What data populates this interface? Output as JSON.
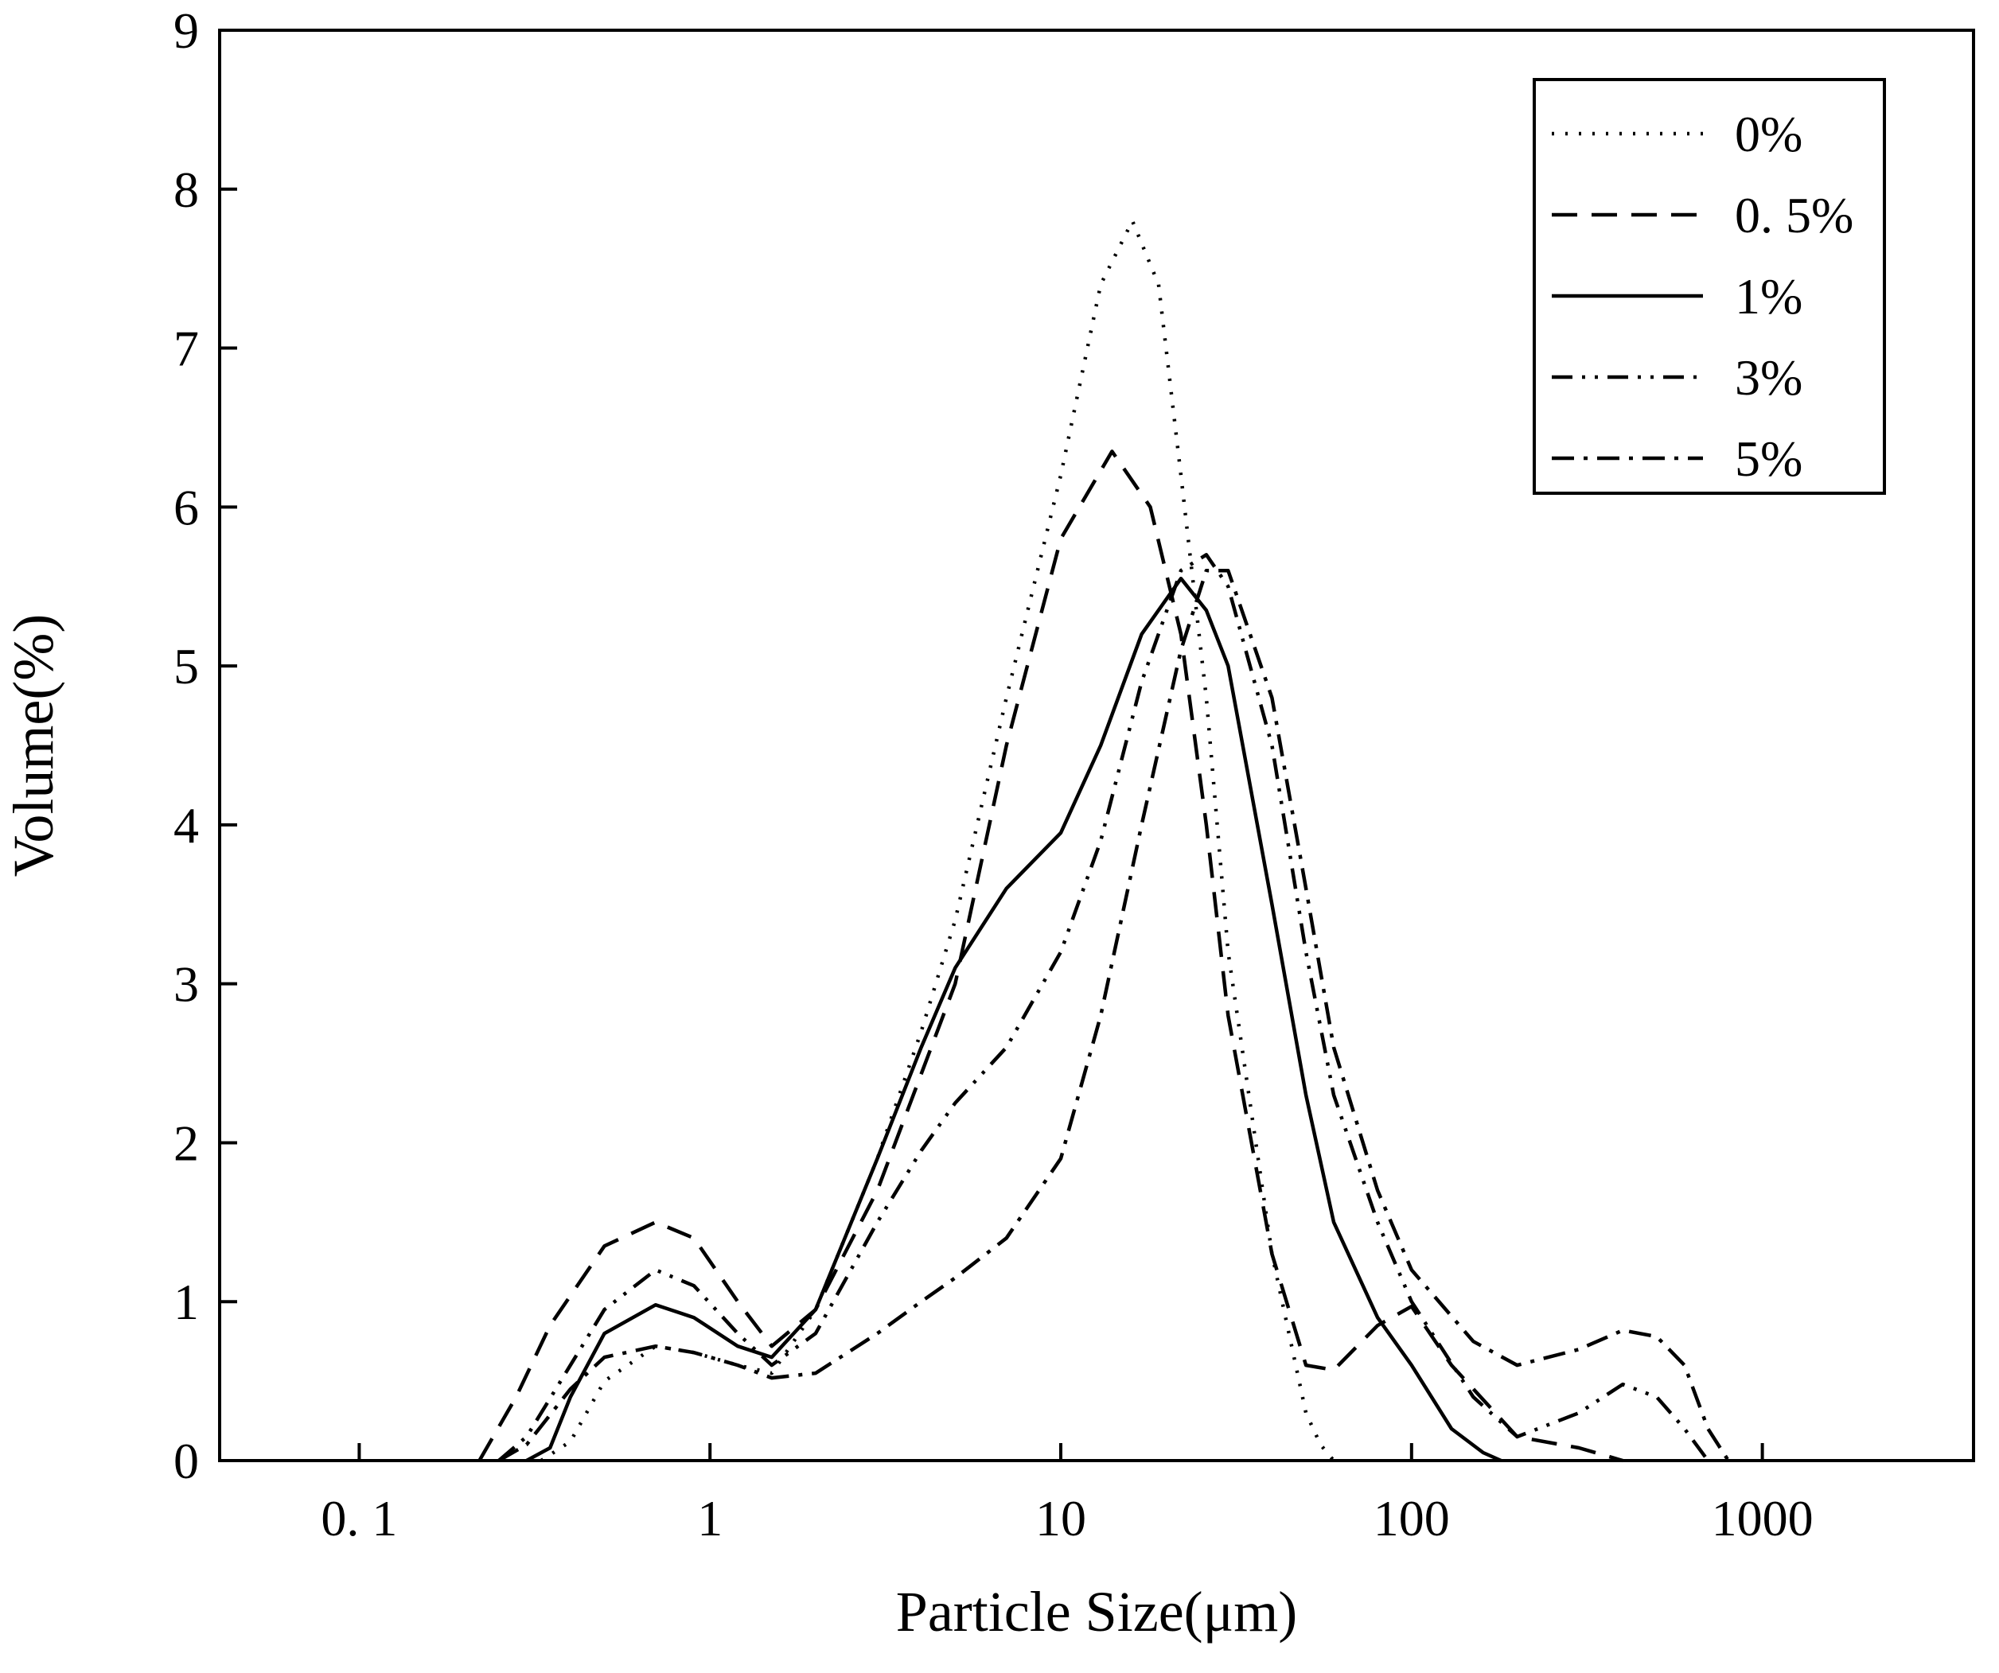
{
  "chart_data": {
    "type": "line",
    "title": "",
    "xlabel": "Particle Size(μm)",
    "ylabel": "Volume(%)",
    "xscale": "log",
    "xlim": [
      0.04,
      4000
    ],
    "ylim": [
      0,
      9
    ],
    "grid": false,
    "legend_position": "top-right",
    "x_ticks": [
      {
        "value": 0.1,
        "label": "0. 1"
      },
      {
        "value": 1,
        "label": "1"
      },
      {
        "value": 10,
        "label": "10"
      },
      {
        "value": 100,
        "label": "100"
      },
      {
        "value": 1000,
        "label": "1000"
      }
    ],
    "y_ticks": [
      {
        "value": 0,
        "label": "0"
      },
      {
        "value": 1,
        "label": "1"
      },
      {
        "value": 2,
        "label": "2"
      },
      {
        "value": 3,
        "label": "3"
      },
      {
        "value": 4,
        "label": "4"
      },
      {
        "value": 5,
        "label": "5"
      },
      {
        "value": 6,
        "label": "6"
      },
      {
        "value": 7,
        "label": "7"
      },
      {
        "value": 8,
        "label": "8"
      },
      {
        "value": 9,
        "label": "9"
      }
    ],
    "series": [
      {
        "name": "0%",
        "line_style": "dotted",
        "x": [
          0.33,
          0.4,
          0.5,
          0.7,
          0.9,
          1.2,
          1.5,
          2,
          3,
          4,
          5,
          7,
          10,
          13,
          16,
          19,
          22,
          26,
          30,
          40,
          50,
          55,
          60
        ],
        "y": [
          0,
          0.12,
          0.5,
          0.72,
          0.68,
          0.6,
          0.55,
          0.95,
          1.9,
          2.7,
          3.4,
          4.8,
          6.2,
          7.4,
          7.8,
          7.4,
          6.2,
          4.8,
          3.2,
          1.3,
          0.3,
          0.1,
          0
        ]
      },
      {
        "name": "0. 5%",
        "line_style": "dashed",
        "x": [
          0.22,
          0.28,
          0.35,
          0.5,
          0.7,
          0.9,
          1.2,
          1.5,
          2,
          3,
          5,
          7,
          10,
          14,
          18,
          22,
          26,
          30,
          40,
          50,
          60,
          80,
          100,
          130,
          200,
          300,
          400
        ],
        "y": [
          0,
          0.4,
          0.85,
          1.35,
          1.5,
          1.4,
          1.0,
          0.72,
          0.95,
          1.7,
          3.0,
          4.5,
          5.8,
          6.35,
          6.0,
          5.2,
          4.0,
          2.8,
          1.3,
          0.6,
          0.57,
          0.85,
          0.97,
          0.6,
          0.15,
          0.08,
          0
        ]
      },
      {
        "name": "1%",
        "line_style": "solid",
        "x": [
          0.3,
          0.35,
          0.4,
          0.5,
          0.7,
          0.9,
          1.2,
          1.5,
          2,
          3,
          4,
          5,
          7,
          10,
          13,
          17,
          22,
          26,
          30,
          40,
          50,
          60,
          80,
          100,
          130,
          160,
          180
        ],
        "y": [
          0,
          0.08,
          0.4,
          0.8,
          0.98,
          0.9,
          0.72,
          0.65,
          0.95,
          1.9,
          2.6,
          3.1,
          3.6,
          3.95,
          4.5,
          5.2,
          5.55,
          5.35,
          5.0,
          3.5,
          2.3,
          1.5,
          0.9,
          0.6,
          0.2,
          0.05,
          0
        ]
      },
      {
        "name": "3%",
        "line_style": "dash-dot-dot",
        "x": [
          0.25,
          0.3,
          0.4,
          0.5,
          0.7,
          0.9,
          1.2,
          1.5,
          2,
          3,
          4,
          5,
          7,
          10,
          13,
          17,
          22,
          26,
          30,
          40,
          50,
          60,
          80,
          100,
          150,
          200,
          300,
          400,
          500,
          600,
          700
        ],
        "y": [
          0,
          0.15,
          0.6,
          0.95,
          1.2,
          1.1,
          0.8,
          0.6,
          0.8,
          1.5,
          1.95,
          2.25,
          2.6,
          3.2,
          3.9,
          4.9,
          5.6,
          5.7,
          5.5,
          4.5,
          3.2,
          2.3,
          1.5,
          1.0,
          0.4,
          0.15,
          0.3,
          0.48,
          0.4,
          0.2,
          0
        ]
      },
      {
        "name": "5%",
        "line_style": "dash-dot",
        "x": [
          0.25,
          0.3,
          0.4,
          0.5,
          0.7,
          0.9,
          1.2,
          1.5,
          2,
          3,
          4,
          5,
          7,
          10,
          13,
          17,
          22,
          26,
          30,
          40,
          50,
          60,
          80,
          100,
          150,
          200,
          300,
          400,
          500,
          600,
          700,
          800
        ],
        "y": [
          0,
          0.1,
          0.45,
          0.65,
          0.72,
          0.68,
          0.6,
          0.52,
          0.55,
          0.8,
          1.0,
          1.15,
          1.4,
          1.9,
          2.8,
          4.0,
          5.1,
          5.6,
          5.6,
          4.8,
          3.6,
          2.6,
          1.7,
          1.2,
          0.75,
          0.6,
          0.7,
          0.82,
          0.78,
          0.6,
          0.2,
          0
        ]
      }
    ]
  }
}
